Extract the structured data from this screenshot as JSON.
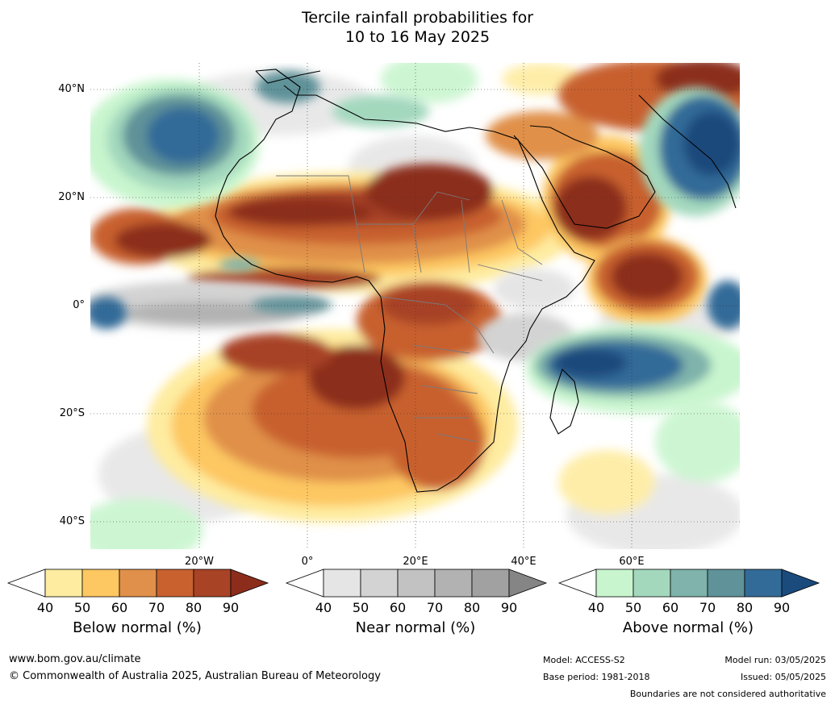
{
  "title": {
    "line1": "Tercile rainfall probabilities for",
    "line2": "10 to 16 May 2025"
  },
  "map": {
    "latitude_labels": [
      "40°N",
      "20°N",
      "0°",
      "20°S",
      "40°S"
    ],
    "longitude_labels": [
      "20°W",
      "0°",
      "20°E",
      "40°E",
      "60°E"
    ],
    "regions": [
      {
        "name": "sahel_west_africa_band",
        "category": "below",
        "level": 90
      },
      {
        "name": "arabian_peninsula",
        "category": "below",
        "level": 80
      },
      {
        "name": "southern_africa",
        "category": "below",
        "level": 70
      },
      {
        "name": "atlantic_10N",
        "category": "below",
        "level": 90
      },
      {
        "name": "south_atlantic",
        "category": "below",
        "level": 70
      },
      {
        "name": "central_africa",
        "category": "below",
        "level": 80
      },
      {
        "name": "western_indian_ocean_5N",
        "category": "below",
        "level": 90
      },
      {
        "name": "north_atlantic_30N",
        "category": "above",
        "level": 80
      },
      {
        "name": "indian_ocean_12S",
        "category": "above",
        "level": 90
      },
      {
        "name": "iran_pakistan",
        "category": "above",
        "level": 80
      },
      {
        "name": "equatorial_atlantic",
        "category": "near",
        "level": 60
      }
    ]
  },
  "colorbars": [
    {
      "label": "Below normal (%)",
      "ticks": [
        "40",
        "50",
        "60",
        "70",
        "80",
        "90"
      ],
      "colors": [
        "#ffffff",
        "#feeca0",
        "#fdc762",
        "#e0904a",
        "#c8612e",
        "#a84325",
        "#8c2d1b"
      ]
    },
    {
      "label": "Near normal (%)",
      "ticks": [
        "40",
        "50",
        "60",
        "70",
        "80",
        "90"
      ],
      "colors": [
        "#ffffff",
        "#e5e5e5",
        "#d3d3d3",
        "#c2c2c2",
        "#b2b2b2",
        "#a1a1a1",
        "#858585"
      ]
    },
    {
      "label": "Above normal (%)",
      "ticks": [
        "40",
        "50",
        "60",
        "70",
        "80",
        "90"
      ],
      "colors": [
        "#ffffff",
        "#c8f5ce",
        "#a3d8bd",
        "#7fb3ab",
        "#5f9299",
        "#336b98",
        "#1b4a7c"
      ]
    }
  ],
  "footer": {
    "url": "www.bom.gov.au/climate",
    "copyright": "© Commonwealth of Australia 2025, Australian Bureau of Meteorology",
    "model": "Model: ACCESS-S2",
    "base_period": "Base period: 1981-2018",
    "model_run": "Model run: 03/05/2025",
    "issued": "Issued: 05/05/2025",
    "disclaimer": "Boundaries are not considered authoritative"
  }
}
